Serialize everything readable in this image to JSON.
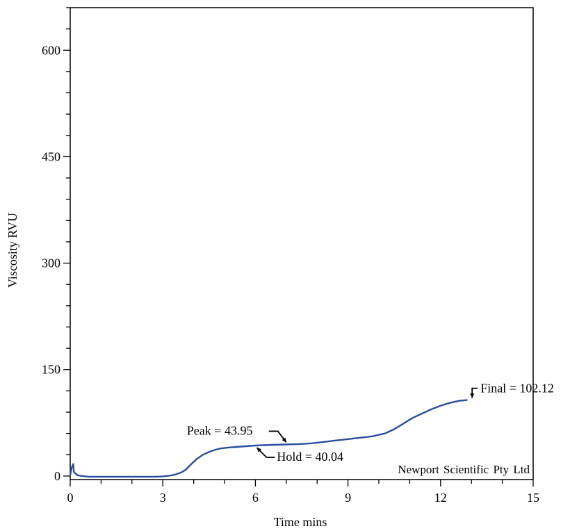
{
  "chart_data": {
    "type": "line",
    "title": "",
    "xlabel": "Time mins",
    "ylabel": "Viscosity RVU",
    "xlim": [
      0,
      15
    ],
    "ylim": [
      -5,
      660
    ],
    "x_ticks": [
      0,
      3,
      6,
      9,
      12,
      15
    ],
    "y_ticks": [
      0,
      150,
      300,
      450,
      600
    ],
    "x_tick_labels": [
      "0",
      "3",
      "6",
      "9",
      "12",
      "15"
    ],
    "y_tick_labels": [
      "0",
      "150",
      "300",
      "450",
      "600"
    ],
    "grid": false,
    "series": [
      {
        "color": "#2a4f9e",
        "x": [
          0.0,
          0.05,
          0.1,
          0.12,
          0.18,
          0.25,
          0.4,
          0.6,
          1.0,
          1.5,
          2.0,
          2.5,
          2.8,
          3.0,
          3.2,
          3.4,
          3.6,
          3.75,
          3.9,
          4.1,
          4.3,
          4.5,
          4.7,
          4.9,
          5.1,
          5.4,
          5.7,
          6.0,
          6.3,
          6.6,
          7.0,
          7.4,
          7.8,
          8.2,
          8.6,
          9.0,
          9.4,
          9.8,
          10.2,
          10.5,
          10.8,
          11.1,
          11.4,
          11.7,
          12.0,
          12.3,
          12.6,
          12.85
        ],
        "y": [
          1,
          12,
          17,
          6,
          3,
          1,
          0,
          -1,
          -1,
          -1,
          -1,
          -1,
          -1,
          -0.5,
          0.5,
          2,
          5,
          9,
          16,
          24,
          30,
          34,
          37,
          39,
          40,
          41,
          42,
          43,
          43.5,
          44,
          44.5,
          45,
          46,
          48,
          50,
          52,
          54,
          56,
          60,
          66,
          74,
          82,
          88,
          94,
          99,
          103,
          106,
          107
        ]
      }
    ],
    "annotations": [
      {
        "label": "Peak = 43.95",
        "x": 7.0,
        "y": 44.5
      },
      {
        "label": "Hold = 40.04",
        "x": 6.0,
        "y": 43
      },
      {
        "label": "Final = 102.12",
        "x": 13.0,
        "y": 107
      }
    ],
    "watermark": "Newport Scientific Pty Ltd"
  }
}
